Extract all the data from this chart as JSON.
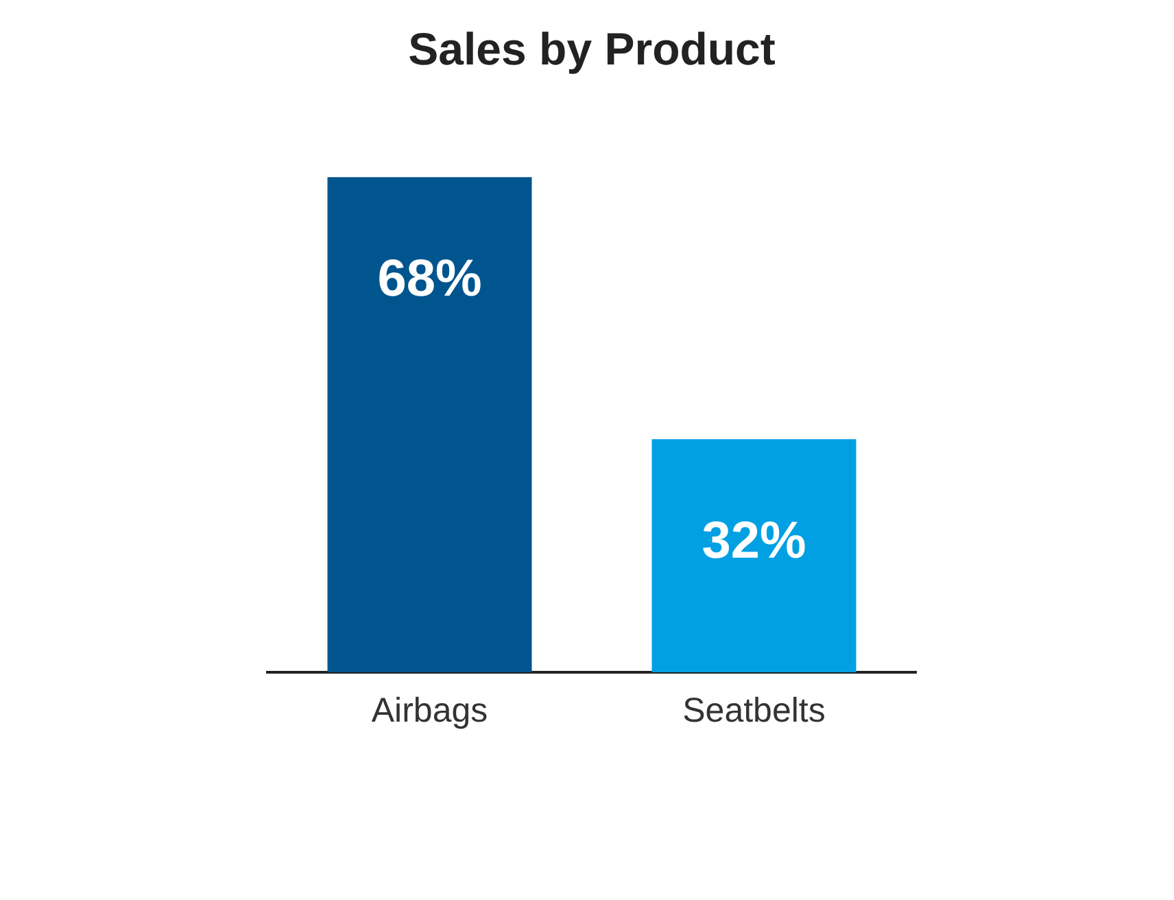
{
  "chart_data": {
    "type": "bar",
    "title": "Sales by Product",
    "categories": [
      "Airbags",
      "Seatbelts"
    ],
    "values": [
      68,
      32
    ],
    "colors": [
      "#00558f",
      "#00a0e3"
    ],
    "value_labels": [
      "68%",
      "32%"
    ],
    "grid": false,
    "legend": false
  }
}
